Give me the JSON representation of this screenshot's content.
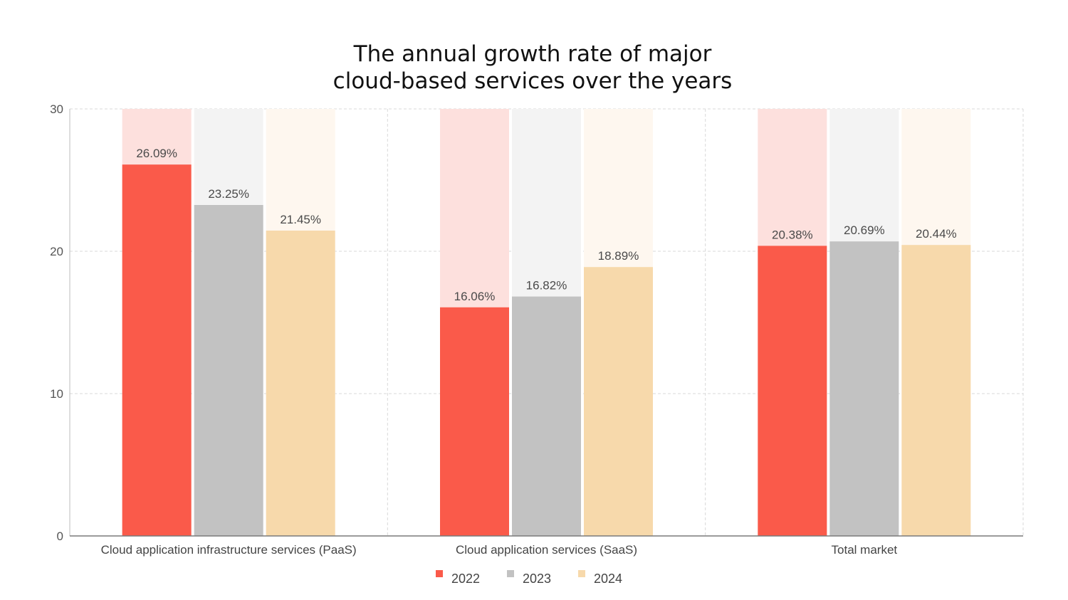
{
  "chart_data": {
    "type": "bar",
    "title_lines": [
      "The annual growth rate of major",
      "cloud-based services over the years"
    ],
    "categories": [
      "Cloud application infrastructure services (PaaS)",
      "Cloud application services (SaaS)",
      "Total market"
    ],
    "series": [
      {
        "name": "2022",
        "values": [
          26.09,
          16.06,
          20.38
        ],
        "labels": [
          "26.09%",
          "16.06%",
          "20.38%"
        ],
        "color": "#fa5a4a",
        "bg_color": "#fde0dd"
      },
      {
        "name": "2023",
        "values": [
          23.25,
          16.82,
          20.69
        ],
        "labels": [
          "23.25%",
          "16.82%",
          "20.69%"
        ],
        "color": "#c2c2c2",
        "bg_color": "#f3f3f3"
      },
      {
        "name": "2024",
        "values": [
          21.45,
          18.89,
          20.44
        ],
        "labels": [
          "21.45%",
          "18.89%",
          "20.44%"
        ],
        "color": "#f7d9ab",
        "bg_color": "#fef7ef"
      }
    ],
    "ylim": [
      0,
      30
    ],
    "yticks": [
      0,
      10,
      20,
      30
    ],
    "ytick_labels": [
      "0",
      "10",
      "20",
      "30"
    ],
    "grid": true,
    "legend_position": "bottom-center",
    "xlabel": "",
    "ylabel": ""
  }
}
